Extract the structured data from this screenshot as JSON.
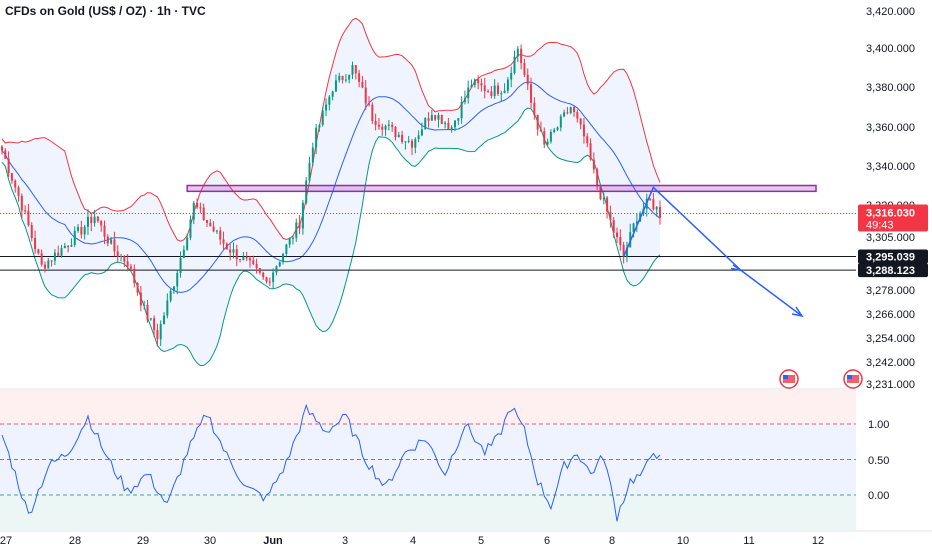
{
  "title": "CFDs on Gold (US$ / OZ) · 1h · TVC",
  "colors": {
    "up": "#089981",
    "down": "#f23645",
    "band_upper": "#f23645",
    "band_lower": "#089981",
    "band_mid": "#2962ff",
    "band_fill": "#2962ff",
    "resistance_zone": "#9c27b0",
    "projection": "#2962ff",
    "oscillator": "#2962ff",
    "osc_zone_top": "#f23645",
    "osc_zone_mid": "#2962ff",
    "osc_zone_bottom": "#089981",
    "last_price_bg": "#f23645",
    "level_bg": "#131722"
  },
  "chart_data": [
    {
      "type": "candlestick",
      "symbol": "CFDs on Gold (US$ / OZ)",
      "interval": "1h",
      "x_tick_labels": [
        "27",
        "28",
        "29",
        "30",
        "Jun",
        "3",
        "4",
        "5",
        "6",
        "8",
        "10",
        "11",
        "12"
      ],
      "y_tick_labels": [
        "3,420.000",
        "3,400.000",
        "3,380.000",
        "3,360.000",
        "3,340.000",
        "3,320.000",
        "3,305.000",
        "3,278.000",
        "3,266.000",
        "3,254.000",
        "3,242.000",
        "3,231.000"
      ],
      "ylim": [
        3231,
        3420
      ],
      "key_path": [
        {
          "bar": 0,
          "price": 3348
        },
        {
          "bar": 6,
          "price": 3320
        },
        {
          "bar": 12,
          "price": 3290
        },
        {
          "bar": 20,
          "price": 3302
        },
        {
          "bar": 28,
          "price": 3315
        },
        {
          "bar": 34,
          "price": 3298
        },
        {
          "bar": 38,
          "price": 3292
        },
        {
          "bar": 43,
          "price": 3268
        },
        {
          "bar": 47,
          "price": 3255
        },
        {
          "bar": 52,
          "price": 3282
        },
        {
          "bar": 58,
          "price": 3320
        },
        {
          "bar": 62,
          "price": 3312
        },
        {
          "bar": 68,
          "price": 3300
        },
        {
          "bar": 74,
          "price": 3292
        },
        {
          "bar": 80,
          "price": 3282
        },
        {
          "bar": 86,
          "price": 3300
        },
        {
          "bar": 90,
          "price": 3312
        },
        {
          "bar": 94,
          "price": 3352
        },
        {
          "bar": 100,
          "price": 3380
        },
        {
          "bar": 106,
          "price": 3390
        },
        {
          "bar": 112,
          "price": 3365
        },
        {
          "bar": 118,
          "price": 3358
        },
        {
          "bar": 124,
          "price": 3352
        },
        {
          "bar": 130,
          "price": 3368
        },
        {
          "bar": 136,
          "price": 3360
        },
        {
          "bar": 142,
          "price": 3382
        },
        {
          "bar": 148,
          "price": 3378
        },
        {
          "bar": 152,
          "price": 3380
        },
        {
          "bar": 156,
          "price": 3400
        },
        {
          "bar": 160,
          "price": 3372
        },
        {
          "bar": 164,
          "price": 3350
        },
        {
          "bar": 168,
          "price": 3360
        },
        {
          "bar": 172,
          "price": 3370
        },
        {
          "bar": 176,
          "price": 3355
        },
        {
          "bar": 180,
          "price": 3330
        },
        {
          "bar": 184,
          "price": 3312
        },
        {
          "bar": 188,
          "price": 3295
        },
        {
          "bar": 192,
          "price": 3315
        },
        {
          "bar": 196,
          "price": 3322
        },
        {
          "bar": 199,
          "price": 3316
        }
      ],
      "last_price": "3,316.030",
      "countdown": "49:43",
      "levels": [
        "3,295.039",
        "3,288.123"
      ],
      "resistance_zone": [
        3327,
        3330
      ]
    },
    {
      "type": "line",
      "name": "oscillator",
      "y_tick_labels": [
        "1.00",
        "0.50",
        "0.00"
      ],
      "ylim": [
        -0.5,
        1.5
      ],
      "zones": [
        1.0,
        0.5,
        0.0
      ],
      "key_path": [
        {
          "bar": 0,
          "value": 0.85
        },
        {
          "bar": 4,
          "value": 0.3
        },
        {
          "bar": 8,
          "value": -0.28
        },
        {
          "bar": 14,
          "value": 0.4
        },
        {
          "bar": 20,
          "value": 0.6
        },
        {
          "bar": 26,
          "value": 1.1
        },
        {
          "bar": 32,
          "value": 0.5
        },
        {
          "bar": 38,
          "value": 0.05
        },
        {
          "bar": 44,
          "value": 0.3
        },
        {
          "bar": 50,
          "value": -0.15
        },
        {
          "bar": 56,
          "value": 0.6
        },
        {
          "bar": 62,
          "value": 1.15
        },
        {
          "bar": 68,
          "value": 0.55
        },
        {
          "bar": 74,
          "value": 0.1
        },
        {
          "bar": 80,
          "value": -0.05
        },
        {
          "bar": 86,
          "value": 0.45
        },
        {
          "bar": 92,
          "value": 1.2
        },
        {
          "bar": 98,
          "value": 0.9
        },
        {
          "bar": 104,
          "value": 1.1
        },
        {
          "bar": 110,
          "value": 0.5
        },
        {
          "bar": 116,
          "value": 0.1
        },
        {
          "bar": 122,
          "value": 0.6
        },
        {
          "bar": 128,
          "value": 0.8
        },
        {
          "bar": 134,
          "value": 0.3
        },
        {
          "bar": 140,
          "value": 1.0
        },
        {
          "bar": 146,
          "value": 0.6
        },
        {
          "bar": 150,
          "value": 0.8
        },
        {
          "bar": 154,
          "value": 1.25
        },
        {
          "bar": 158,
          "value": 0.9
        },
        {
          "bar": 162,
          "value": 0.2
        },
        {
          "bar": 166,
          "value": -0.15
        },
        {
          "bar": 170,
          "value": 0.4
        },
        {
          "bar": 174,
          "value": 0.6
        },
        {
          "bar": 178,
          "value": 0.3
        },
        {
          "bar": 182,
          "value": 0.55
        },
        {
          "bar": 186,
          "value": -0.3
        },
        {
          "bar": 190,
          "value": 0.2
        },
        {
          "bar": 194,
          "value": 0.3
        },
        {
          "bar": 197,
          "value": 0.65
        },
        {
          "bar": 199,
          "value": 0.5
        }
      ]
    }
  ]
}
